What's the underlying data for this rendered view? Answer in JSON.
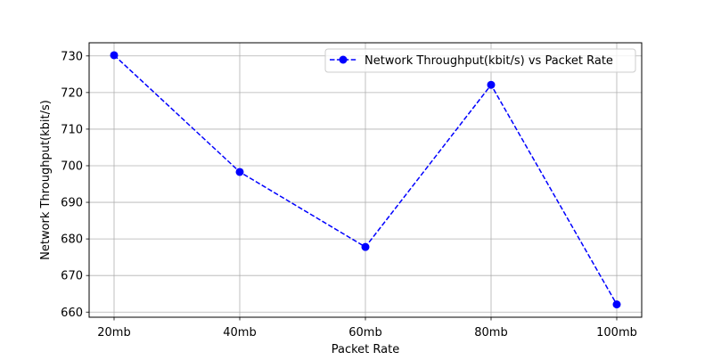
{
  "chart_data": {
    "type": "line",
    "categories": [
      "20mb",
      "40mb",
      "60mb",
      "80mb",
      "100mb"
    ],
    "series": [
      {
        "name": "Network Throughput(kbit/s) vs Packet Rate",
        "values": [
          730.2,
          698.3,
          677.8,
          722.1,
          662.1
        ],
        "color": "#0000ff",
        "line_style": "dashed",
        "marker": "circle"
      }
    ],
    "xlabel": "Packet Rate",
    "ylabel": "Network Throughput(kbit/s)",
    "ylim": [
      658.6,
      733.6
    ],
    "yticks": [
      660,
      670,
      680,
      690,
      700,
      710,
      720,
      730
    ],
    "grid": true,
    "legend_position": "top-right"
  }
}
